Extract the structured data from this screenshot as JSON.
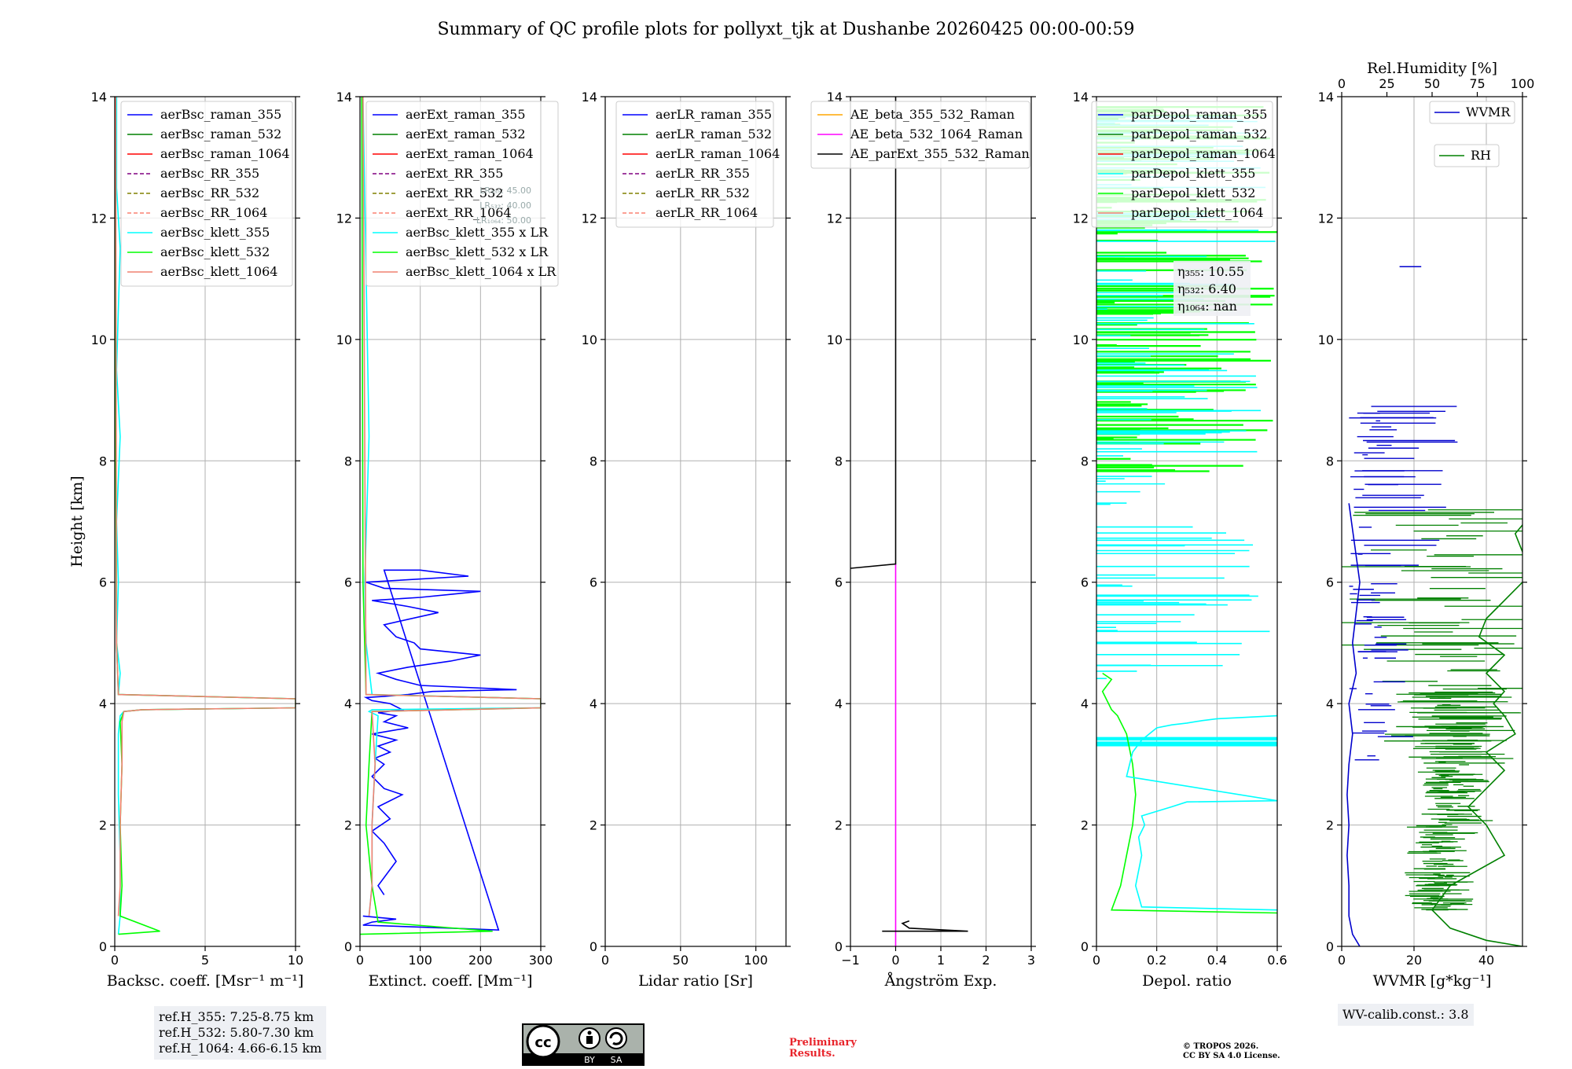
{
  "title": "Summary of QC profile plots for pollyxt_tjk at Dushanbe 20260425 00:00-00:59",
  "colors": {
    "raman_355": "#0000ff",
    "raman_532": "#008000",
    "raman_1064": "#ff0000",
    "rr_355": "#800080",
    "rr_532": "#808000",
    "rr_1064": "#fa8072",
    "klett_355": "#00ffff",
    "klett_532": "#00ff00",
    "klett_1064": "#f08070",
    "ae_beta_355_532": "#ffa500",
    "ae_beta_532_1064": "#ff00ff",
    "ae_parext": "#000000",
    "wvmr": "#0000cd",
    "rh": "#008000"
  },
  "chart_data": [
    {
      "type": "line",
      "name": "backscatter",
      "xlabel": "Backsc. coeff. [Msr⁻¹ m⁻¹]",
      "ylabel": "Height [km]",
      "xlim": [
        0,
        10
      ],
      "ylim": [
        0,
        14
      ],
      "xticks": [
        0,
        5,
        10
      ],
      "yticks": [
        0,
        2,
        4,
        6,
        8,
        10,
        12,
        14
      ],
      "legend": [
        "aerBsc_raman_355",
        "aerBsc_raman_532",
        "aerBsc_raman_1064",
        "aerBsc_RR_355",
        "aerBsc_RR_532",
        "aerBsc_RR_1064",
        "aerBsc_klett_355",
        "aerBsc_klett_532",
        "aerBsc_klett_1064"
      ],
      "series": [
        {
          "name": "aerBsc_klett_355",
          "x": [
            0.2,
            0.3,
            0.3,
            0.2,
            0.2,
            0.3,
            0.5,
            1.5,
            10,
            10,
            0.2,
            0.3,
            0.1,
            0.2,
            0.1,
            0.3,
            0.1,
            0.2,
            0.3,
            0.1,
            0.1
          ],
          "y": [
            0.2,
            0.5,
            1.5,
            2.5,
            3.5,
            3.8,
            3.87,
            3.9,
            3.93,
            4.08,
            4.15,
            4.5,
            5.0,
            6.0,
            7.0,
            8.4,
            9.5,
            10.5,
            11.5,
            12.5,
            14.0
          ]
        },
        {
          "name": "aerBsc_klett_532",
          "x": [
            0.2,
            2.5,
            0.3,
            0.4,
            0.3,
            0.4,
            0.3,
            0.5,
            1.5,
            10,
            10,
            0.2,
            0.1,
            0.05,
            0.05
          ],
          "y": [
            0.2,
            0.25,
            0.5,
            1.0,
            2.0,
            3.0,
            3.7,
            3.87,
            3.9,
            3.93,
            4.08,
            4.15,
            5.0,
            8.0,
            14.0
          ]
        },
        {
          "name": "aerBsc_klett_1064",
          "x": [
            0.2,
            0.3,
            0.3,
            0.4,
            0.4,
            0.5,
            1.5,
            10,
            10,
            0.2,
            0.1,
            0.05
          ],
          "y": [
            0.5,
            1.0,
            2.0,
            3.0,
            3.7,
            3.87,
            3.9,
            3.93,
            4.08,
            4.15,
            5.0,
            14.0
          ]
        }
      ]
    },
    {
      "type": "line",
      "name": "extinction",
      "xlabel": "Extinct. coeff. [Mm⁻¹]",
      "xlim": [
        0,
        300
      ],
      "ylim": [
        0,
        14
      ],
      "xticks": [
        0,
        100,
        200,
        300
      ],
      "yticks": [
        0,
        2,
        4,
        6,
        8,
        10,
        12,
        14
      ],
      "lidar_ratio_labels": [
        "LR₃₅₅: 45.00",
        "LR₅₃₂: 40.00",
        "LR₁₀₆₄: 50.00"
      ],
      "legend": [
        "aerExt_raman_355",
        "aerExt_raman_532",
        "aerExt_raman_1064",
        "aerExt_RR_355",
        "aerExt_RR_532",
        "aerExt_RR_1064",
        "aerBsc_klett_355 x LR",
        "aerBsc_klett_532 x LR",
        "aerBsc_klett_1064 x LR"
      ],
      "series": [
        {
          "name": "aerExt_raman_355",
          "x": [
            40,
            30,
            60,
            40,
            20,
            50,
            30,
            70,
            40,
            20,
            40,
            25,
            50,
            30,
            60,
            20,
            80,
            40,
            60,
            30,
            70,
            50,
            20,
            10,
            40,
            80,
            120,
            260,
            100,
            60,
            30,
            80,
            150,
            200,
            100,
            90,
            60,
            40,
            130,
            80,
            20,
            100,
            150,
            200,
            40,
            10,
            180,
            100,
            40,
            230,
            150,
            5,
            20,
            60,
            5
          ],
          "y": [
            0.85,
            1.0,
            1.4,
            1.7,
            1.9,
            2.1,
            2.3,
            2.5,
            2.6,
            2.8,
            3.0,
            3.1,
            3.2,
            3.3,
            3.4,
            3.5,
            3.6,
            3.7,
            3.8,
            3.85,
            3.9,
            4.0,
            4.05,
            4.1,
            4.12,
            4.15,
            4.2,
            4.23,
            4.3,
            4.4,
            4.5,
            4.6,
            4.7,
            4.8,
            4.9,
            5.0,
            5.1,
            5.3,
            5.5,
            5.6,
            5.7,
            5.75,
            5.8,
            5.85,
            5.9,
            6.0,
            6.1,
            6.2,
            6.2,
            0.27,
            0.3,
            0.35,
            0.4,
            0.45,
            0.5
          ]
        },
        {
          "name": "aerBsc_klett_355 x LR",
          "x": [
            15,
            20,
            20,
            25,
            30,
            15,
            20,
            300,
            300,
            20,
            10,
            8,
            15,
            5
          ],
          "y": [
            0.5,
            1.0,
            2.0,
            3.0,
            3.8,
            3.87,
            3.9,
            3.93,
            4.08,
            4.15,
            5.0,
            6.0,
            8.4,
            14.0
          ]
        },
        {
          "name": "aerBsc_klett_532 x LR",
          "x": [
            0,
            220,
            30,
            20,
            10,
            15,
            20,
            300,
            300,
            10,
            5,
            3
          ],
          "y": [
            0.2,
            0.25,
            0.4,
            1.0,
            2.0,
            3.0,
            3.87,
            3.93,
            4.08,
            4.15,
            6.0,
            14.0
          ]
        },
        {
          "name": "aerBsc_klett_1064 x LR",
          "x": [
            15,
            20,
            20,
            25,
            20,
            300,
            300,
            10,
            5
          ],
          "y": [
            0.5,
            1.0,
            2.0,
            3.0,
            3.87,
            3.93,
            4.08,
            4.15,
            14.0
          ]
        }
      ]
    },
    {
      "type": "line",
      "name": "lidar_ratio",
      "xlabel": "Lidar ratio [Sr]",
      "xlim": [
        0,
        120
      ],
      "ylim": [
        0,
        14
      ],
      "xticks": [
        0,
        50,
        100
      ],
      "yticks": [
        0,
        2,
        4,
        6,
        8,
        10,
        12,
        14
      ],
      "legend": [
        "aerLR_raman_355",
        "aerLR_raman_532",
        "aerLR_raman_1064",
        "aerLR_RR_355",
        "aerLR_RR_532",
        "aerLR_RR_1064"
      ],
      "series": []
    },
    {
      "type": "line",
      "name": "angstrom",
      "xlabel": "Ångström Exp.",
      "xlim": [
        -1,
        3
      ],
      "ylim": [
        0,
        14
      ],
      "xticks": [
        -1,
        0,
        1,
        2,
        3
      ],
      "yticks": [
        0,
        2,
        4,
        6,
        8,
        10,
        12,
        14
      ],
      "legend": [
        "AE_beta_355_532_Raman",
        "AE_beta_532_1064_Raman",
        "AE_parExt_355_532_Raman"
      ],
      "series": [
        {
          "name": "AE_beta_532_1064_Raman",
          "x": [
            0,
            0
          ],
          "y": [
            0.0,
            6.3
          ]
        },
        {
          "name": "AE_parExt_355_532_Raman",
          "x": [
            -1,
            0,
            0,
            0
          ],
          "y": [
            6.23,
            6.3,
            6.3,
            14.0
          ]
        },
        {
          "name": "AE_parExt_355_532_Raman_low",
          "x": [
            -0.3,
            1.6,
            0.3,
            0.15,
            0.3
          ],
          "y": [
            0.25,
            0.25,
            0.3,
            0.38,
            0.42
          ]
        }
      ]
    },
    {
      "type": "line",
      "name": "depolarization",
      "xlabel": "Depol. ratio",
      "xlim": [
        0,
        0.6
      ],
      "ylim": [
        0,
        14
      ],
      "xticks": [
        0,
        0.2,
        0.4,
        0.6
      ],
      "yticks": [
        0,
        2,
        4,
        6,
        8,
        10,
        12,
        14
      ],
      "eta_labels": [
        "η₃₅₅: 10.55",
        "η₅₃₂: 6.40",
        "η₁₀₆₄: nan"
      ],
      "legend": [
        "parDepol_raman_355",
        "parDepol_raman_532",
        "parDepol_raman_1064",
        "parDepol_klett_355",
        "parDepol_klett_532",
        "parDepol_klett_1064"
      ],
      "series": [
        {
          "name": "parDepol_klett_532",
          "x": [
            0.6,
            0.05,
            0.08,
            0.1,
            0.12,
            0.13,
            0.12,
            0.1,
            0.07,
            0.05,
            0.03,
            0.02,
            0.05,
            0.02
          ],
          "y": [
            0.55,
            0.6,
            1.0,
            1.5,
            2.0,
            2.5,
            3.0,
            3.5,
            3.8,
            3.9,
            4.1,
            4.2,
            4.4,
            4.5
          ]
        },
        {
          "name": "parDepol_klett_355",
          "x": [
            0.6,
            0.15,
            0.13,
            0.15,
            0.14,
            0.16,
            0.15,
            0.25,
            0.3,
            0.6,
            0.1,
            0.12,
            0.15,
            0.2,
            0.25,
            0.3,
            0.35,
            0.4,
            0.6
          ],
          "y": [
            0.6,
            0.65,
            1.0,
            1.5,
            1.8,
            2.0,
            2.15,
            2.3,
            2.38,
            2.4,
            2.8,
            3.2,
            3.4,
            3.6,
            3.65,
            3.68,
            3.72,
            3.75,
            3.8
          ]
        }
      ]
    },
    {
      "type": "line",
      "name": "water_vapor",
      "xlabel": "WVMR [g*kg⁻¹]",
      "x2label": "Rel.Humidity [%]",
      "xlim": [
        0,
        50
      ],
      "x2lim": [
        0,
        100
      ],
      "ylim": [
        0,
        14
      ],
      "xticks": [
        0,
        20,
        40
      ],
      "x2ticks": [
        0,
        25,
        50,
        75,
        100
      ],
      "yticks": [
        0,
        2,
        4,
        6,
        8,
        10,
        12,
        14
      ],
      "legend": [
        "WVMR",
        "RH"
      ],
      "series": [
        {
          "name": "WVMR",
          "x": [
            5,
            3,
            2,
            2,
            1.5,
            2,
            1.5,
            2,
            3,
            2,
            4,
            3,
            5,
            2
          ],
          "y": [
            0.0,
            0.2,
            0.5,
            1.0,
            1.5,
            2.0,
            2.5,
            3.0,
            3.5,
            4.0,
            4.5,
            5.0,
            6.0,
            7.3
          ]
        },
        {
          "name": "RH",
          "x": [
            50,
            40,
            30,
            25,
            30,
            45,
            40,
            35,
            40,
            45,
            40,
            48,
            45,
            42,
            45,
            40,
            45,
            38,
            40,
            45,
            50,
            55,
            50,
            48,
            55
          ],
          "y": [
            0.0,
            0.1,
            0.3,
            0.6,
            1.0,
            1.5,
            2.0,
            2.3,
            2.6,
            2.9,
            3.2,
            3.5,
            3.8,
            4.0,
            4.2,
            4.5,
            4.8,
            5.1,
            5.4,
            5.7,
            6.0,
            6.2,
            6.5,
            6.8,
            7.3
          ]
        }
      ]
    }
  ],
  "reference_heights": [
    "ref.H_355: 7.25-8.75 km",
    "ref.H_532: 5.80-7.30 km",
    "ref.H_1064: 4.66-6.15 km"
  ],
  "wv_calib": "WV-calib.const.: 3.8",
  "preliminary": [
    "Preliminary",
    "Results."
  ],
  "copyright": [
    "© TROPOS 2026.",
    "CC BY SA 4.0 License."
  ],
  "cc_badge": [
    "BY",
    "SA"
  ]
}
